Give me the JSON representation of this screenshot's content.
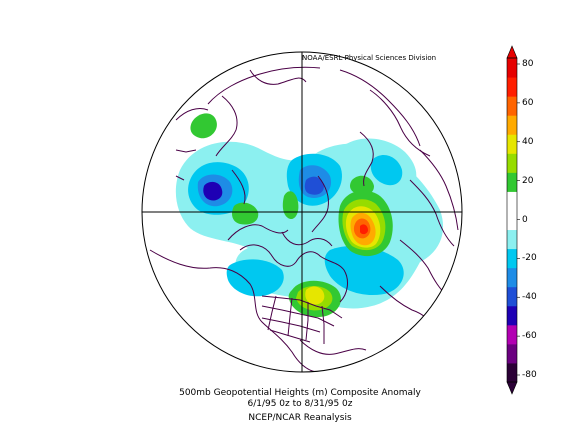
{
  "credit": "NOAA/ESRL Physical Sciences Division",
  "caption": {
    "line1": "500mb Geopotential Heights (m)    Composite Anomaly",
    "line2": "6/1/95 0z  to 8/31/95 0z",
    "line3": "NCEP/NCAR Reanalysis"
  },
  "colorbar": {
    "ticks": [
      "80",
      "60",
      "40",
      "20",
      "0",
      "-20",
      "-40",
      "-60",
      "-80"
    ],
    "colors": [
      "#2b0036",
      "#6b0080",
      "#b200b2",
      "#1e00b4",
      "#1f4fd6",
      "#1e8ce6",
      "#00c8f0",
      "#8cf0f0",
      "#ffffff",
      "#ffffff",
      "#32c832",
      "#96dc00",
      "#e6e600",
      "#ffaa00",
      "#ff6400",
      "#ff1e00",
      "#e60000"
    ]
  },
  "map": {
    "projection": "north-polar-stereographic",
    "colors": {
      "coast": "#4a0046",
      "grid": "#000000"
    }
  }
}
